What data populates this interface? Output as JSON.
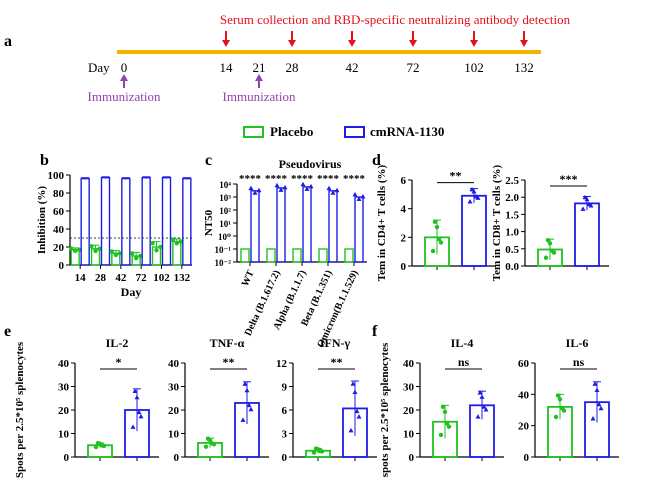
{
  "colors": {
    "placebo": "#1fc21f",
    "cmrna": "#1d1de8",
    "timeline": "#f4b400",
    "serum_arrow": "#e8101a",
    "immun_arrow": "#8e44ad",
    "axis": "#000000"
  },
  "timeline": {
    "panel": "a",
    "day_label": "Day",
    "days": [
      0,
      14,
      21,
      28,
      42,
      72,
      102,
      132
    ],
    "serum_days": [
      14,
      28,
      42,
      72,
      102,
      132
    ],
    "immunization_days": [
      0,
      21
    ],
    "serum_text": "Serum collection and RBD-specific neutralizing antibody detection",
    "immunization_text": "Immunization"
  },
  "legend": {
    "placebo": "Placebo",
    "cmrna": "cmRNA-1130"
  },
  "chart_data": [
    {
      "panel": "b",
      "type": "bar",
      "ylabel": "Inhibition (%)",
      "xlabel": "Day",
      "ylim": [
        0,
        100
      ],
      "yticks": [
        "0",
        "20",
        "40",
        "60",
        "80",
        "100"
      ],
      "categories": [
        "14",
        "28",
        "42",
        "72",
        "102",
        "132"
      ],
      "cutoff": 30,
      "series": [
        {
          "name": "Placebo",
          "values": [
            17,
            18,
            13,
            10,
            20,
            26
          ],
          "errors": [
            2,
            4,
            3,
            4,
            6,
            3
          ]
        },
        {
          "name": "cmRNA-1130",
          "values": [
            96,
            97,
            96,
            97,
            97,
            96
          ],
          "errors": [
            1,
            1,
            1,
            1,
            1,
            1
          ]
        }
      ]
    },
    {
      "panel": "c",
      "type": "bar",
      "title": "Pseudovirus",
      "ylabel": "NT50",
      "yscale": "log",
      "ylim_exp": [
        -2,
        4
      ],
      "yticks": [
        "10⁻²",
        "10⁻¹",
        "10⁰",
        "10¹",
        "10²",
        "10³",
        "10⁴"
      ],
      "categories": [
        "WT",
        "Delta (B.1.617.2)",
        "Alpha (B.1.1.7)",
        "Beta (B.1.351)",
        "Omicron(B.1.1.529)"
      ],
      "significance": [
        "****",
        "****",
        "****",
        "****",
        "****"
      ],
      "series": [
        {
          "name": "Placebo",
          "values": [
            0.1,
            0.1,
            0.1,
            0.1,
            0.1
          ]
        },
        {
          "name": "cmRNA-1130",
          "values": [
            3000,
            5000,
            6000,
            3000,
            1000
          ]
        }
      ]
    },
    {
      "panel": "d",
      "type": "bar",
      "ylabel": "Tem in CD4+ T cells (%)",
      "ylim": [
        0,
        6
      ],
      "yticks": [
        "0",
        "2",
        "4",
        "6"
      ],
      "significance": "**",
      "series": [
        {
          "name": "Placebo",
          "value": 2.0,
          "error": 1.2
        },
        {
          "name": "cmRNA-1130",
          "value": 4.9,
          "error": 0.5
        }
      ]
    },
    {
      "panel": "d2",
      "type": "bar",
      "ylabel": "Tem in CD8+ T cells (%)",
      "ylim": [
        0,
        2.5
      ],
      "yticks": [
        "0.0",
        "0.5",
        "1.0",
        "1.5",
        "2.0",
        "2.5"
      ],
      "significance": "***",
      "series": [
        {
          "name": "Placebo",
          "value": 0.48,
          "error": 0.3
        },
        {
          "name": "cmRNA-1130",
          "value": 1.82,
          "error": 0.2
        }
      ]
    },
    {
      "panel": "e",
      "type": "bar",
      "title": "IL-2",
      "ylabel": "Spots per 2.5*10⁵ splenocytes",
      "ylim": [
        0,
        40
      ],
      "yticks": [
        "0",
        "10",
        "20",
        "30",
        "40"
      ],
      "significance": "*",
      "series": [
        {
          "name": "Placebo",
          "value": 5,
          "error": 1
        },
        {
          "name": "cmRNA-1130",
          "value": 20,
          "error": 9
        }
      ]
    },
    {
      "panel": "e2",
      "type": "bar",
      "title": "TNF-α",
      "ylim": [
        0,
        40
      ],
      "yticks": [
        "0",
        "10",
        "20",
        "30",
        "40"
      ],
      "significance": "**",
      "series": [
        {
          "name": "Placebo",
          "value": 6,
          "error": 2
        },
        {
          "name": "cmRNA-1130",
          "value": 23,
          "error": 9
        }
      ]
    },
    {
      "panel": "e3",
      "type": "bar",
      "title": "IFN-γ",
      "ylim": [
        0,
        12
      ],
      "yticks": [
        "0",
        "3",
        "6",
        "9",
        "12"
      ],
      "significance": "**",
      "series": [
        {
          "name": "Placebo",
          "value": 0.8,
          "error": 0.3
        },
        {
          "name": "cmRNA-1130",
          "value": 6.2,
          "error": 3.5
        }
      ]
    },
    {
      "panel": "f",
      "type": "bar",
      "title": "IL-4",
      "ylabel": "spots per 2.5*10⁵ splenocytes",
      "ylim": [
        0,
        40
      ],
      "yticks": [
        "0",
        "10",
        "20",
        "30",
        "40"
      ],
      "significance": "ns",
      "series": [
        {
          "name": "Placebo",
          "value": 15,
          "error": 7
        },
        {
          "name": "cmRNA-1130",
          "value": 22,
          "error": 6
        }
      ]
    },
    {
      "panel": "f2",
      "type": "bar",
      "title": "IL-6",
      "ylim": [
        0,
        60
      ],
      "yticks": [
        "0",
        "20",
        "40",
        "60"
      ],
      "significance": "ns",
      "series": [
        {
          "name": "Placebo",
          "value": 32,
          "error": 8
        },
        {
          "name": "cmRNA-1130",
          "value": 35,
          "error": 13
        }
      ]
    }
  ]
}
